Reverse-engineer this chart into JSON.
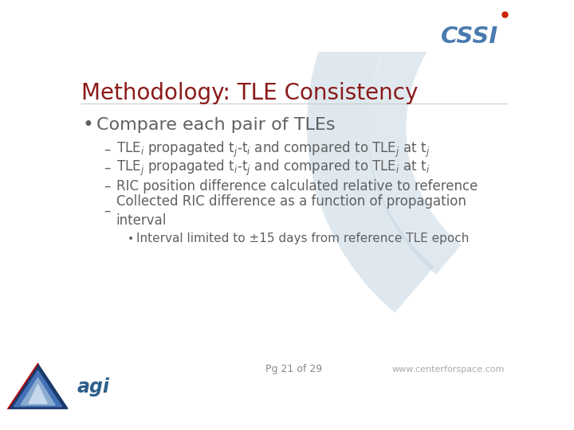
{
  "title": "Methodology: TLE Consistency",
  "title_color": "#8B1A1A",
  "title_fontsize": 20,
  "background_color": "#FFFFFF",
  "bullet_main": "Compare each pair of TLEs",
  "bullet_main_color": "#606060",
  "bullet_main_fontsize": 16,
  "sub_bullets": [
    "TLE$_i$ propagated t$_j$-t$_i$ and compared to TLE$_j$ at t$_j$",
    "TLE$_j$ propagated t$_i$-t$_j$ and compared to TLE$_i$ at t$_i$",
    "RIC position difference calculated relative to reference",
    "Collected RIC difference as a function of propagation\ninterval"
  ],
  "sub_bullet_color": "#606060",
  "sub_bullet_fontsize": 12,
  "sub_sub_bullet": "Interval limited to ±15 days from reference TLE epoch",
  "sub_sub_bullet_color": "#606060",
  "sub_sub_bullet_fontsize": 11,
  "footer_text": "Pg 21 of 29",
  "footer_color": "#888888",
  "footer_fontsize": 9,
  "watermark_text": "www.centerforspace.com",
  "watermark_color": "#AAAAAA",
  "watermark_fontsize": 8,
  "line_color": "#CCCCCC",
  "arc_color": "#D0DFE8",
  "arc_color2": "#C5D5E2"
}
